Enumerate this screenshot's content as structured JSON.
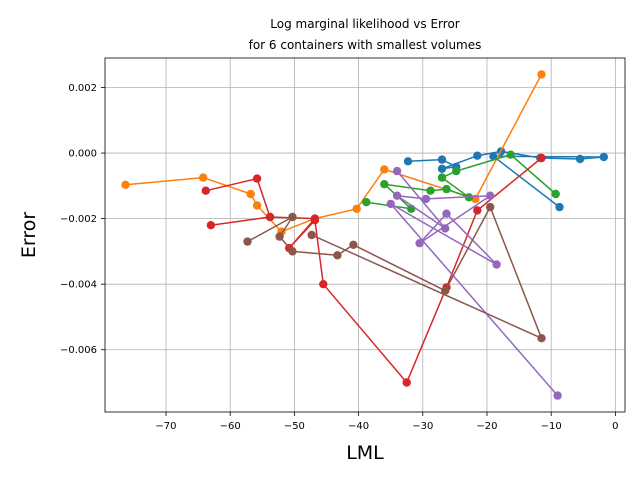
{
  "chart_data": {
    "type": "line",
    "title_lines": [
      "Log marginal likelihood vs Error",
      "for 6 containers with smallest volumes"
    ],
    "xlabel": "LML",
    "ylabel": "Error",
    "xlim": [
      -79.5,
      1.5
    ],
    "ylim": [
      -0.0079,
      0.0029
    ],
    "xticks": [
      -70,
      -60,
      -50,
      -40,
      -30,
      -20,
      -10,
      0
    ],
    "xtick_labels": [
      "−70",
      "−60",
      "−50",
      "−40",
      "−30",
      "−20",
      "−10",
      "0"
    ],
    "yticks": [
      -0.006,
      -0.004,
      -0.002,
      0.0,
      0.002
    ],
    "ytick_labels": [
      "−0.006",
      "−0.004",
      "−0.002",
      "0.000",
      "0.002"
    ],
    "grid": true,
    "series": [
      {
        "color": "#1f77b4",
        "points": [
          [
            -32.3,
            -0.00025
          ],
          [
            -27.0,
            -0.0002
          ],
          [
            -24.8,
            -0.00042
          ],
          [
            -27.0,
            -0.00048
          ],
          [
            -21.5,
            -8e-05
          ],
          [
            -17.8,
            5e-05
          ],
          [
            -11.7,
            -0.00015
          ],
          [
            -5.5,
            -0.00018
          ],
          [
            -1.8,
            -0.00012
          ],
          [
            -19.0,
            -0.0001
          ],
          [
            -8.7,
            -0.00165
          ]
        ]
      },
      {
        "color": "#ff7f0e",
        "points": [
          [
            -76.3,
            -0.00097
          ],
          [
            -64.2,
            -0.00075
          ],
          [
            -56.8,
            -0.00125
          ],
          [
            -55.8,
            -0.0016
          ],
          [
            -52.0,
            -0.0024
          ],
          [
            -46.8,
            -0.002
          ],
          [
            -40.3,
            -0.0017
          ],
          [
            -36.0,
            -0.0005
          ],
          [
            -21.8,
            -0.0014
          ],
          [
            -11.5,
            0.0024
          ]
        ]
      },
      {
        "color": "#2ca02c",
        "points": [
          [
            -38.8,
            -0.0015
          ],
          [
            -31.8,
            -0.0017
          ],
          [
            -36.0,
            -0.00095
          ],
          [
            -28.8,
            -0.00115
          ],
          [
            -26.3,
            -0.0011
          ],
          [
            -22.8,
            -0.00135
          ],
          [
            -27.0,
            -0.00075
          ],
          [
            -24.8,
            -0.00055
          ],
          [
            -16.3,
            -5e-05
          ],
          [
            -9.3,
            -0.00125
          ]
        ]
      },
      {
        "color": "#d62728",
        "points": [
          [
            -63.8,
            -0.00115
          ],
          [
            -55.8,
            -0.00078
          ],
          [
            -53.8,
            -0.00195
          ],
          [
            -63.0,
            -0.0022
          ],
          [
            -53.8,
            -0.00195
          ],
          [
            -46.8,
            -0.002
          ],
          [
            -50.8,
            -0.0029
          ],
          [
            -46.8,
            -0.00205
          ],
          [
            -45.5,
            -0.004
          ],
          [
            -32.5,
            -0.007
          ],
          [
            -26.3,
            -0.0041
          ],
          [
            -21.5,
            -0.00175
          ],
          [
            -11.5,
            -0.00015
          ]
        ]
      },
      {
        "color": "#9467bd",
        "points": [
          [
            -34.0,
            -0.00055
          ],
          [
            -26.5,
            -0.0023
          ],
          [
            -34.0,
            -0.0013
          ],
          [
            -29.5,
            -0.0014
          ],
          [
            -19.5,
            -0.0013
          ],
          [
            -30.5,
            -0.00275
          ],
          [
            -26.3,
            -0.00185
          ],
          [
            -18.5,
            -0.0034
          ],
          [
            -35.0,
            -0.00155
          ],
          [
            -9.0,
            -0.0074
          ]
        ]
      },
      {
        "color": "#8c564b",
        "points": [
          [
            -57.3,
            -0.0027
          ],
          [
            -50.3,
            -0.00195
          ],
          [
            -52.3,
            -0.00255
          ],
          [
            -50.3,
            -0.003
          ],
          [
            -43.3,
            -0.00312
          ],
          [
            -40.8,
            -0.0028
          ],
          [
            -26.5,
            -0.0042
          ],
          [
            -19.5,
            -0.00165
          ],
          [
            -11.5,
            -0.00565
          ],
          [
            -47.3,
            -0.0025
          ]
        ]
      }
    ]
  }
}
